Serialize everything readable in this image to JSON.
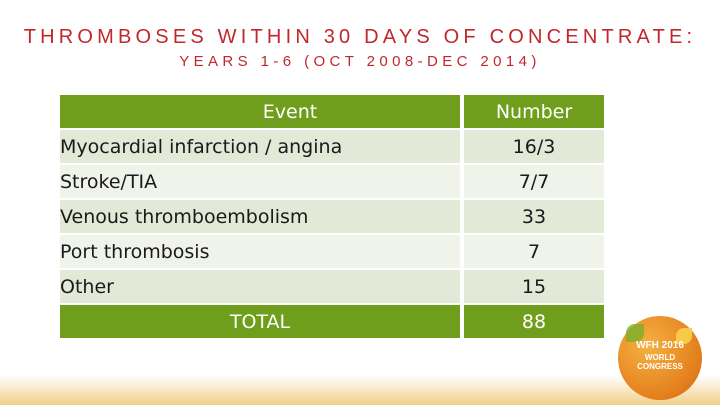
{
  "slide": {
    "title": "THROMBOSES WITHIN 30 DAYS OF CONCENTRATE:",
    "subtitle": "YEARS 1-6 (OCT 2008-DEC 2014)"
  },
  "table": {
    "headers": [
      "Event",
      "Number"
    ],
    "rows": [
      {
        "event": "Myocardial infarction / angina",
        "number": "16/3"
      },
      {
        "event": "Stroke/TIA",
        "number": "7/7"
      },
      {
        "event": "Venous thromboembolism",
        "number": "33"
      },
      {
        "event": "Port thrombosis",
        "number": "7"
      },
      {
        "event": "Other",
        "number": "15"
      }
    ],
    "total": {
      "label": "TOTAL",
      "number": "88"
    }
  },
  "logo": {
    "name": "wfh-congress-logo",
    "line1": "WFH 2016",
    "line2": "WORLD",
    "line3": "CONGRESS"
  },
  "colors": {
    "title": "#c0282d",
    "table_header": "#6f9e1c",
    "row_odd": "#e2e9d7",
    "row_even": "#eff3e9"
  }
}
